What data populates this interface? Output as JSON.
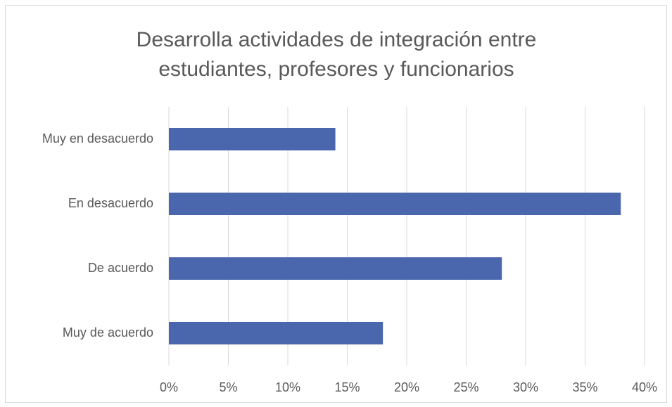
{
  "chart_data": {
    "type": "hbar",
    "title": [
      "Desarrolla actividades de integración entre",
      "estudiantes, profesores y funcionarios"
    ],
    "categories": [
      "Muy en desacuerdo",
      "En desacuerdo",
      "De acuerdo",
      "Muy de acuerdo"
    ],
    "values": [
      14,
      38,
      28,
      18
    ],
    "color": "#4a66ac",
    "xlim": [
      0,
      40
    ],
    "xticks": [
      {
        "value": 0,
        "label": "0%"
      },
      {
        "value": 5,
        "label": "5%"
      },
      {
        "value": 10,
        "label": "10%"
      },
      {
        "value": 15,
        "label": "15%"
      },
      {
        "value": 20,
        "label": "20%"
      },
      {
        "value": 25,
        "label": "25%"
      },
      {
        "value": 30,
        "label": "30%"
      },
      {
        "value": 35,
        "label": "35%"
      },
      {
        "value": 40,
        "label": "40%"
      }
    ],
    "grid": true
  }
}
